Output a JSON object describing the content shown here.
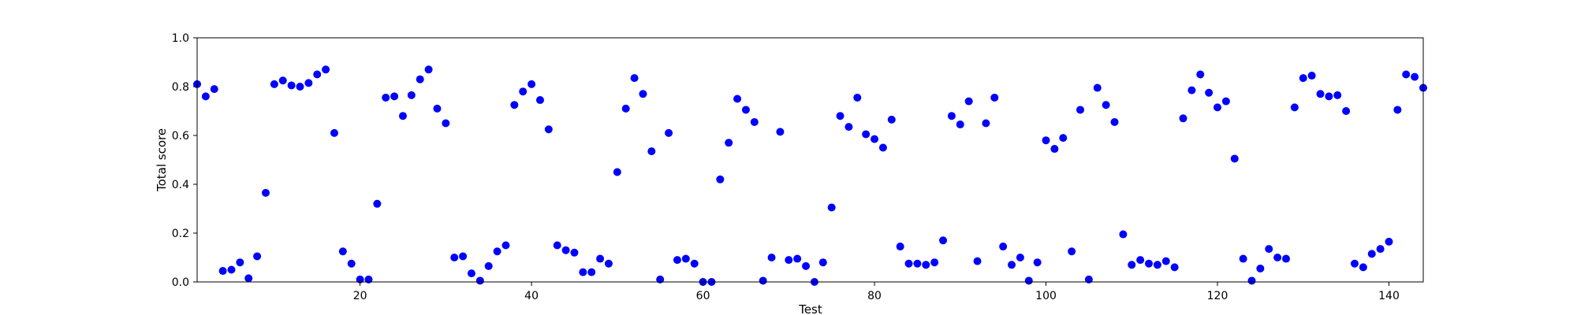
{
  "chart_data": {
    "type": "scatter",
    "title": "",
    "xlabel": "Test",
    "ylabel": "Total score",
    "xlim": [
      1,
      144
    ],
    "ylim": [
      0,
      1.0
    ],
    "xticks": [
      20,
      40,
      60,
      80,
      100,
      120,
      140
    ],
    "yticks": [
      0.0,
      0.2,
      0.4,
      0.6,
      0.8,
      1.0
    ],
    "xtick_labels": [
      "20",
      "40",
      "60",
      "80",
      "100",
      "120",
      "140"
    ],
    "ytick_labels": [
      "0.0",
      "0.2",
      "0.4",
      "0.6",
      "0.8",
      "1.0"
    ],
    "grid": false,
    "legend": "none",
    "marker_color": "#0000ff",
    "x": [
      1,
      2,
      3,
      4,
      5,
      6,
      7,
      8,
      9,
      10,
      11,
      12,
      13,
      14,
      15,
      16,
      17,
      18,
      19,
      20,
      21,
      22,
      23,
      24,
      25,
      26,
      27,
      28,
      29,
      30,
      31,
      32,
      33,
      34,
      35,
      36,
      37,
      38,
      39,
      40,
      41,
      42,
      43,
      44,
      45,
      46,
      47,
      48,
      49,
      50,
      51,
      52,
      53,
      54,
      55,
      56,
      57,
      58,
      59,
      60,
      61,
      62,
      63,
      64,
      65,
      66,
      67,
      68,
      69,
      70,
      71,
      72,
      73,
      74,
      75,
      76,
      77,
      78,
      79,
      80,
      81,
      82,
      83,
      84,
      85,
      86,
      87,
      88,
      89,
      90,
      91,
      92,
      93,
      94,
      95,
      96,
      97,
      98,
      99,
      100,
      101,
      102,
      103,
      104,
      105,
      106,
      107,
      108,
      109,
      110,
      111,
      112,
      113,
      114,
      115,
      116,
      117,
      118,
      119,
      120,
      121,
      122,
      123,
      124,
      125,
      126,
      127,
      128,
      129,
      130,
      131,
      132,
      133,
      134,
      135,
      136,
      137,
      138,
      139,
      140,
      141,
      142,
      143,
      144
    ],
    "y": [
      0.81,
      0.76,
      0.79,
      0.045,
      0.05,
      0.08,
      0.015,
      0.105,
      0.365,
      0.81,
      0.825,
      0.805,
      0.8,
      0.815,
      0.85,
      0.87,
      0.61,
      0.125,
      0.075,
      0.01,
      0.01,
      0.32,
      0.755,
      0.76,
      0.68,
      0.765,
      0.83,
      0.87,
      0.71,
      0.65,
      0.1,
      0.105,
      0.035,
      0.005,
      0.065,
      0.125,
      0.15,
      0.725,
      0.78,
      0.81,
      0.745,
      0.625,
      0.15,
      0.13,
      0.12,
      0.04,
      0.04,
      0.095,
      0.075,
      0.45,
      0.71,
      0.835,
      0.77,
      0.535,
      0.01,
      0.61,
      0.09,
      0.095,
      0.075,
      0.0,
      0.0,
      0.42,
      0.57,
      0.75,
      0.705,
      0.655,
      0.005,
      0.1,
      0.615,
      0.09,
      0.095,
      0.065,
      0.0,
      0.08,
      0.305,
      0.68,
      0.635,
      0.755,
      0.605,
      0.585,
      0.55,
      0.665,
      0.145,
      0.075,
      0.075,
      0.07,
      0.08,
      0.17,
      0.68,
      0.645,
      0.74,
      0.085,
      0.65,
      0.755,
      0.145,
      0.07,
      0.1,
      0.005,
      0.08,
      0.58,
      0.545,
      0.59,
      0.125,
      0.705,
      0.01,
      0.795,
      0.725,
      0.655,
      0.195,
      0.07,
      0.09,
      0.075,
      0.07,
      0.085,
      0.06,
      0.67,
      0.785,
      0.85,
      0.775,
      0.715,
      0.74,
      0.505,
      0.095,
      0.005,
      0.055,
      0.135,
      0.1,
      0.095,
      0.715,
      0.835,
      0.845,
      0.77,
      0.76,
      0.765,
      0.7,
      0.075,
      0.06,
      0.115,
      0.135,
      0.165,
      0.705,
      0.85,
      0.84,
      0.795
    ]
  }
}
